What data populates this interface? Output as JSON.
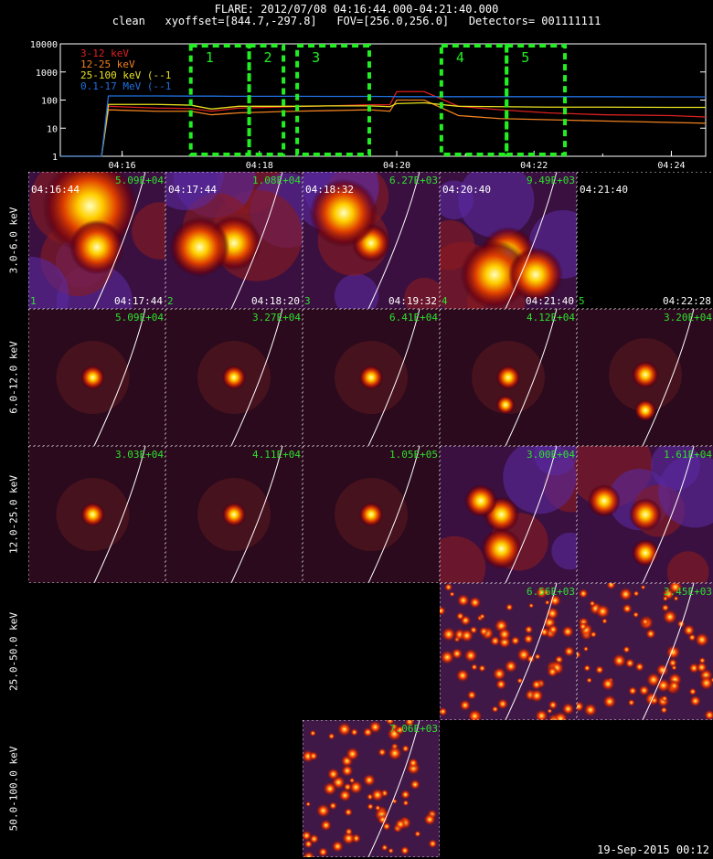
{
  "header": {
    "line1": "FLARE: 2012/07/08 04:16:44.000-04:21:40.000",
    "line2": "clean   xyoffset=[844.7,-297.8]   FOV=[256.0,256.0]   Detectors= 001111111"
  },
  "chart_data": [
    {
      "type": "line",
      "yscale": "log",
      "ylim": [
        1,
        10000
      ],
      "yticks": [
        "1",
        "10",
        "100",
        "1000",
        "10000"
      ],
      "xticks": [
        "04:16",
        "04:18",
        "04:20",
        "04:22",
        "04:24"
      ],
      "xlim_minutes": [
        15.1,
        24.5
      ],
      "legend": [
        "3-12 keV",
        "12-25 keV",
        "25-100 keV (--1",
        "0.1-17 MeV (--1"
      ],
      "colors": {
        "3-12 keV": "#dd2020",
        "12-25 keV": "#f08020",
        "25-100 keV": "#e8e020",
        "0.1-17 MeV": "#2070e0",
        "box": "#22ee22"
      },
      "series": [
        {
          "name": "3-12 keV",
          "x": [
            15.1,
            15.7,
            15.8,
            16.5,
            17.0,
            17.3,
            17.7,
            18.5,
            19.0,
            19.6,
            19.9,
            20.0,
            20.4,
            20.9,
            21.5,
            22.2,
            23.0,
            24.0,
            24.5
          ],
          "y": [
            1,
            1,
            60,
            52,
            50,
            40,
            52,
            58,
            62,
            68,
            68,
            200,
            200,
            60,
            45,
            35,
            30,
            28,
            25
          ]
        },
        {
          "name": "12-25 keV",
          "x": [
            15.1,
            15.7,
            15.8,
            16.5,
            17.0,
            17.3,
            17.7,
            18.5,
            19.0,
            19.6,
            19.9,
            20.0,
            20.4,
            20.9,
            21.5,
            22.2,
            23.0,
            24.0,
            24.5
          ],
          "y": [
            1,
            1,
            45,
            40,
            40,
            30,
            35,
            40,
            42,
            45,
            40,
            100,
            100,
            28,
            22,
            20,
            18,
            16,
            15
          ]
        },
        {
          "name": "25-100 keV",
          "x": [
            15.1,
            15.7,
            15.8,
            16.5,
            17.0,
            17.3,
            17.7,
            18.5,
            19.0,
            19.6,
            19.9,
            20.0,
            20.4,
            20.9,
            21.5,
            22.2,
            23.0,
            24.0,
            24.5
          ],
          "y": [
            1,
            1,
            70,
            70,
            66,
            48,
            60,
            60,
            62,
            62,
            58,
            75,
            80,
            60,
            58,
            56,
            56,
            55,
            55
          ]
        },
        {
          "name": "0.1-17 MeV",
          "x": [
            15.1,
            15.7,
            15.8,
            16.5,
            17.0,
            17.3,
            17.7,
            18.5,
            19.0,
            19.6,
            19.9,
            20.0,
            20.4,
            20.9,
            21.5,
            22.2,
            23.0,
            24.0,
            24.5
          ],
          "y": [
            1,
            1,
            140,
            140,
            138,
            138,
            136,
            136,
            135,
            135,
            134,
            132,
            132,
            132,
            132,
            132,
            132,
            130,
            130
          ]
        }
      ],
      "intervals": [
        {
          "label": "1",
          "start": 17.0,
          "end": 17.85
        },
        {
          "label": "2",
          "start": 17.85,
          "end": 18.35
        },
        {
          "label": "3",
          "start": 18.55,
          "end": 19.6
        },
        {
          "label": "4",
          "start": 20.65,
          "end": 21.6
        },
        {
          "label": "5",
          "start": 21.6,
          "end": 22.45
        }
      ]
    }
  ],
  "grid": {
    "row_labels": [
      "3.0-6.0 keV",
      "6.0-12.0 keV",
      "12.0-25.0 keV",
      "25.0-50.0 keV",
      "50.0-100.0 keV"
    ],
    "panels": [
      {
        "row": 0,
        "col": 0,
        "max": "5.09E+04",
        "start": "04:16:44",
        "end": "04:17:44",
        "index": "1",
        "style": "diffuse",
        "sources": [
          [
            0.45,
            0.25,
            0.35
          ],
          [
            0.5,
            0.55,
            0.2
          ]
        ],
        "limb": true
      },
      {
        "row": 0,
        "col": 1,
        "max": "1.08E+04",
        "start": "04:17:44",
        "end": "04:18:20",
        "index": "2",
        "style": "diffuse",
        "sources": [
          [
            0.5,
            0.52,
            0.2
          ],
          [
            0.25,
            0.55,
            0.22
          ]
        ],
        "limb": true
      },
      {
        "row": 0,
        "col": 2,
        "max": "6.27E+03",
        "start": "04:18:32",
        "end": "04:19:32",
        "index": "3",
        "style": "diffuse",
        "sources": [
          [
            0.5,
            0.52,
            0.14
          ],
          [
            0.3,
            0.3,
            0.25
          ]
        ],
        "limb": true
      },
      {
        "row": 0,
        "col": 3,
        "max": "9.49E+03",
        "start": "04:20:40",
        "end": "04:21:40",
        "index": "4",
        "style": "diffuse",
        "sources": [
          [
            0.5,
            0.6,
            0.2
          ],
          [
            0.4,
            0.75,
            0.25
          ],
          [
            0.7,
            0.75,
            0.2
          ]
        ],
        "limb": true
      },
      {
        "row": 0,
        "col": 4,
        "max": "",
        "start": "04:21:40",
        "end": "04:22:28",
        "index": "5",
        "style": "empty",
        "sources": [],
        "limb": false
      },
      {
        "row": 1,
        "col": 0,
        "max": "5.09E+04",
        "start": "",
        "end": "",
        "index": "",
        "style": "point",
        "sources": [
          [
            0.47,
            0.5,
            0.09
          ]
        ],
        "limb": true
      },
      {
        "row": 1,
        "col": 1,
        "max": "3.27E+04",
        "start": "",
        "end": "",
        "index": "",
        "style": "point",
        "sources": [
          [
            0.5,
            0.5,
            0.09
          ]
        ],
        "limb": true
      },
      {
        "row": 1,
        "col": 2,
        "max": "6.41E+04",
        "start": "",
        "end": "",
        "index": "",
        "style": "point",
        "sources": [
          [
            0.5,
            0.5,
            0.09
          ]
        ],
        "limb": true
      },
      {
        "row": 1,
        "col": 3,
        "max": "4.12E+04",
        "start": "",
        "end": "",
        "index": "",
        "style": "point",
        "sources": [
          [
            0.5,
            0.5,
            0.09
          ],
          [
            0.48,
            0.7,
            0.07
          ]
        ],
        "limb": true
      },
      {
        "row": 1,
        "col": 4,
        "max": "3.20E+04",
        "start": "",
        "end": "",
        "index": "",
        "style": "point",
        "sources": [
          [
            0.5,
            0.48,
            0.1
          ],
          [
            0.5,
            0.74,
            0.08
          ]
        ],
        "limb": true
      },
      {
        "row": 2,
        "col": 0,
        "max": "3.03E+04",
        "start": "",
        "end": "",
        "index": "",
        "style": "point",
        "sources": [
          [
            0.47,
            0.5,
            0.09
          ]
        ],
        "limb": true
      },
      {
        "row": 2,
        "col": 1,
        "max": "4.11E+04",
        "start": "",
        "end": "",
        "index": "",
        "style": "point",
        "sources": [
          [
            0.5,
            0.5,
            0.09
          ]
        ],
        "limb": true
      },
      {
        "row": 2,
        "col": 2,
        "max": "1.05E+05",
        "start": "",
        "end": "",
        "index": "",
        "style": "point",
        "sources": [
          [
            0.5,
            0.5,
            0.09
          ]
        ],
        "limb": true
      },
      {
        "row": 2,
        "col": 3,
        "max": "3.00E+04",
        "start": "",
        "end": "",
        "index": "",
        "style": "diffuse",
        "sources": [
          [
            0.45,
            0.5,
            0.13
          ],
          [
            0.45,
            0.75,
            0.15
          ],
          [
            0.3,
            0.4,
            0.12
          ]
        ],
        "limb": true
      },
      {
        "row": 2,
        "col": 4,
        "max": "1.61E+04",
        "start": "",
        "end": "",
        "index": "",
        "style": "diffuse",
        "sources": [
          [
            0.5,
            0.5,
            0.12
          ],
          [
            0.5,
            0.78,
            0.1
          ],
          [
            0.2,
            0.4,
            0.12
          ]
        ],
        "limb": true
      },
      {
        "row": 3,
        "col": 3,
        "max": "6.56E+03",
        "start": "",
        "end": "",
        "index": "",
        "style": "noise",
        "sources": [],
        "limb": true
      },
      {
        "row": 3,
        "col": 4,
        "max": "3.45E+03",
        "start": "",
        "end": "",
        "index": "",
        "style": "noise",
        "sources": [],
        "limb": true
      },
      {
        "row": 4,
        "col": 2,
        "max": "7.06E+03",
        "start": "",
        "end": "",
        "index": "",
        "style": "noise",
        "sources": [],
        "limb": true
      }
    ]
  },
  "footer": "19-Sep-2015 00:12"
}
